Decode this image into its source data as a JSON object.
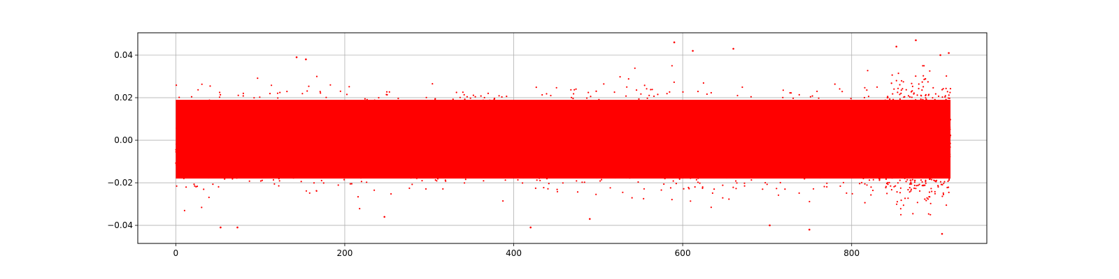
{
  "chart_data": {
    "type": "scatter",
    "title": "",
    "xlabel": "",
    "ylabel": "",
    "xlim": [
      -45,
      960
    ],
    "ylim": [
      -0.0485,
      0.0505
    ],
    "x_ticks": [
      0,
      200,
      400,
      600,
      800
    ],
    "x_tick_labels": [
      "0",
      "200",
      "400",
      "600",
      "800"
    ],
    "y_ticks": [
      -0.04,
      -0.02,
      0.0,
      0.02,
      0.04
    ],
    "y_tick_labels": [
      "−0.04",
      "−0.02",
      "0.00",
      "0.02",
      "0.04"
    ],
    "grid": true,
    "marker_color": "#ff0000",
    "x_range": [
      0,
      917
    ],
    "dense_band": [
      -0.018,
      0.019
    ],
    "scatter_extent": [
      -0.035,
      0.035
    ],
    "outliers": [
      {
        "x": 590,
        "y": 0.046
      },
      {
        "x": 612,
        "y": 0.042
      },
      {
        "x": 660,
        "y": 0.043
      },
      {
        "x": 876,
        "y": 0.047
      },
      {
        "x": 853,
        "y": 0.044
      },
      {
        "x": 905,
        "y": 0.04
      },
      {
        "x": 915,
        "y": 0.041
      },
      {
        "x": 143,
        "y": 0.039
      },
      {
        "x": 154,
        "y": 0.038
      },
      {
        "x": 53,
        "y": -0.041
      },
      {
        "x": 73,
        "y": -0.041
      },
      {
        "x": 420,
        "y": -0.041
      },
      {
        "x": 703,
        "y": -0.04
      },
      {
        "x": 750,
        "y": -0.042
      },
      {
        "x": 907,
        "y": -0.044
      },
      {
        "x": 490,
        "y": -0.037
      },
      {
        "x": 247,
        "y": -0.036
      }
    ]
  }
}
